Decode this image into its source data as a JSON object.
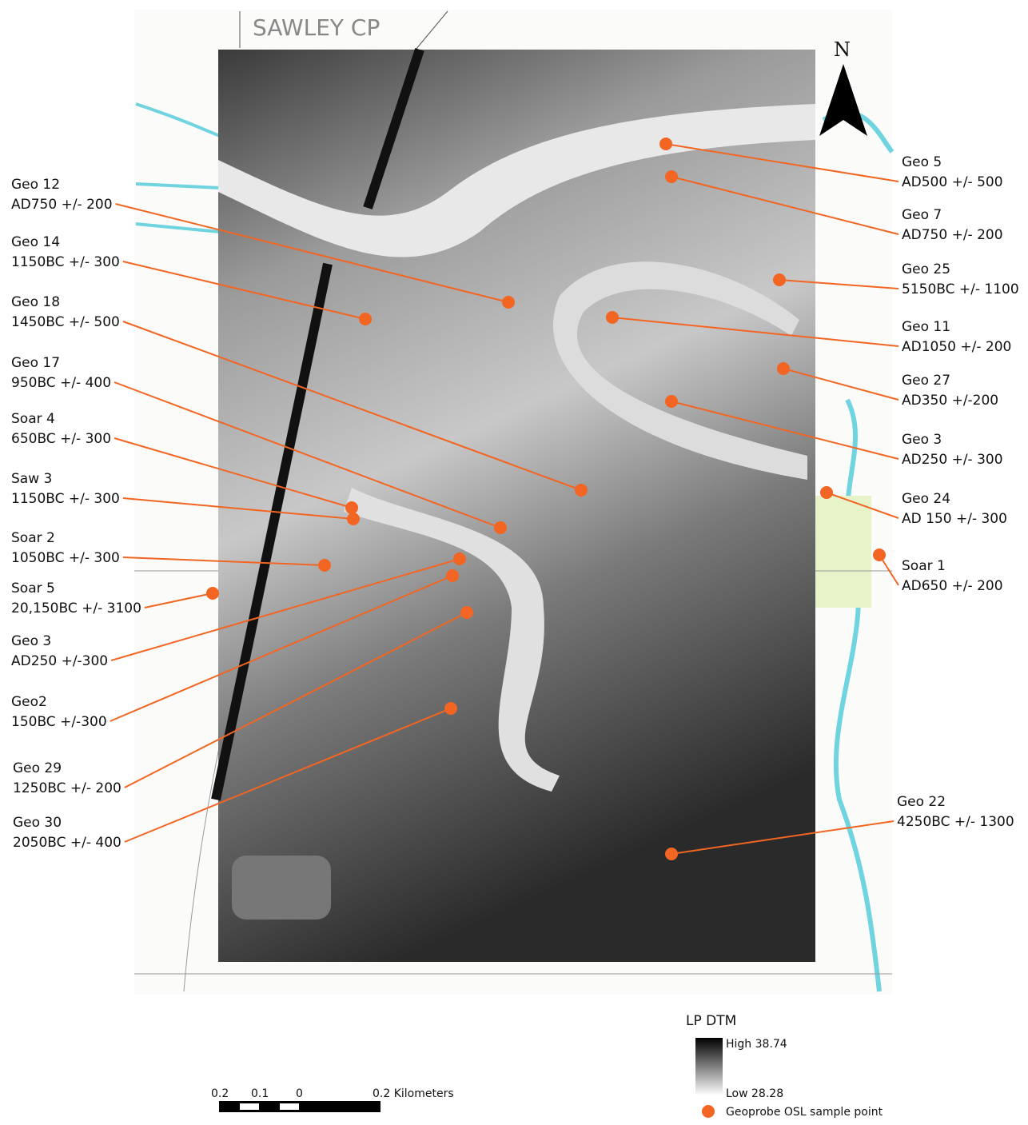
{
  "map": {
    "title": "SAWLEY CP",
    "north": "N",
    "samples": [
      {
        "name": "Geo 12",
        "date": "AD750 +/- 200"
      },
      {
        "name": "Geo 14",
        "date": "1150BC +/- 300"
      },
      {
        "name": "Geo 18",
        "date": "1450BC +/- 500"
      },
      {
        "name": "Geo 17",
        "date": "950BC +/- 400"
      },
      {
        "name": "Soar 4",
        "date": "650BC +/- 300"
      },
      {
        "name": "Saw 3",
        "date": "1150BC +/- 300"
      },
      {
        "name": "Soar 2",
        "date": "1050BC +/- 300"
      },
      {
        "name": "Soar 5",
        "date": "20,150BC +/- 3100"
      },
      {
        "name": "Geo 3",
        "date": "AD250 +/-300"
      },
      {
        "name": "Geo2",
        "date": "150BC +/-300"
      },
      {
        "name": "Geo 29",
        "date": "1250BC +/- 200"
      },
      {
        "name": "Geo 30",
        "date": "2050BC +/- 400"
      },
      {
        "name": "Geo 5",
        "date": "AD500 +/- 500"
      },
      {
        "name": "Geo 7",
        "date": "AD750 +/- 200"
      },
      {
        "name": "Geo 25",
        "date": "5150BC +/- 1100"
      },
      {
        "name": "Geo 11",
        "date": "AD1050 +/- 200"
      },
      {
        "name": "Geo 27",
        "date": "AD350 +/-200"
      },
      {
        "name": "Geo 3",
        "date": "AD250 +/- 300"
      },
      {
        "name": "Geo 24",
        "date": "AD 150 +/- 300"
      },
      {
        "name": "Soar 1",
        "date": "AD650 +/- 200"
      },
      {
        "name": "Geo 22",
        "date": "4250BC +/- 1300"
      }
    ],
    "legend": {
      "title": "LP DTM",
      "high": "High 38.74",
      "low": "Low 28.28",
      "point": "Geoprobe OSL sample point"
    },
    "scale": {
      "labels": [
        "0.2",
        "0.1",
        "0",
        "0.2 Kilometers"
      ]
    }
  }
}
